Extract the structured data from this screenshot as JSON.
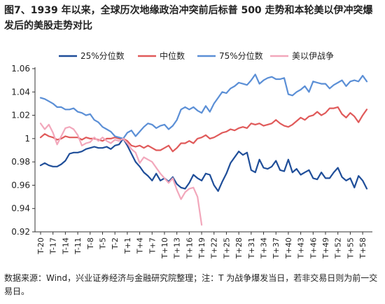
{
  "title": "图7、1939 年以来，全球历次地缘政治冲突前后标普 500 走势和本轮美以伊冲突爆发后的美股走势对比",
  "source": "数据来源：Wind，兴业证券经济与金融研究院整理；注：T 为战争爆发当日，若非交易日则为前一交易日。",
  "chart_data": {
    "type": "line",
    "title": "",
    "xlabel": "",
    "ylabel": "",
    "ylim": [
      0.92,
      1.06
    ],
    "yticks": [
      "0.92",
      "0.94",
      "0.96",
      "0.98",
      "1",
      "1.02",
      "1.04",
      "1.06"
    ],
    "grid": false,
    "legend_position": "top",
    "x": [
      "T-20",
      "T-19",
      "T-18",
      "T-17",
      "T-16",
      "T-15",
      "T-14",
      "T-13",
      "T-12",
      "T-11",
      "T-10",
      "T-9",
      "T-8",
      "T-7",
      "T-6",
      "T-5",
      "T-4",
      "T-3",
      "T-2",
      "T-1",
      "T",
      "T+1",
      "T+2",
      "T+3",
      "T+4",
      "T+5",
      "T+6",
      "T+7",
      "T+8",
      "T+9",
      "T+10",
      "T+11",
      "T+12",
      "T+13",
      "T+14",
      "T+15",
      "T+16",
      "T+17",
      "T+18",
      "T+19",
      "T+20",
      "T+21",
      "T+22",
      "T+23",
      "T+24",
      "T+25",
      "T+26",
      "T+27",
      "T+28",
      "T+29",
      "T+30",
      "T+31",
      "T+32",
      "T+33",
      "T+34",
      "T+35",
      "T+36",
      "T+37",
      "T+38",
      "T+39",
      "T+40",
      "T+41",
      "T+42",
      "T+43",
      "T+44",
      "T+45",
      "T+46",
      "T+47",
      "T+48",
      "T+49",
      "T+50",
      "T+51",
      "T+52",
      "T+53",
      "T+54",
      "T+55",
      "T+56",
      "T+57",
      "T+58",
      "T+59"
    ],
    "xtick_labels": [
      "T-20",
      "T-17",
      "T-14",
      "T-11",
      "T-8",
      "T-5",
      "T-2",
      "T+1",
      "T+4",
      "T+7",
      "T+10",
      "T+13",
      "T+16",
      "T+19",
      "T+22",
      "T+25",
      "T+28",
      "T+31",
      "T+34",
      "T+37",
      "T+40",
      "T+43",
      "T+46",
      "T+49",
      "T+52",
      "T+55",
      "T+58"
    ],
    "series": [
      {
        "name": "25%分位数",
        "color": "#1f4e99",
        "values": [
          0.977,
          0.979,
          0.977,
          0.976,
          0.976,
          0.978,
          0.981,
          0.987,
          0.988,
          0.988,
          0.989,
          0.991,
          0.992,
          0.993,
          0.992,
          0.992,
          0.993,
          0.991,
          0.994,
          0.995,
          1.0,
          0.994,
          0.987,
          0.98,
          0.976,
          0.971,
          0.968,
          0.964,
          0.97,
          0.964,
          0.966,
          0.963,
          0.967,
          0.961,
          0.958,
          0.957,
          0.962,
          0.969,
          0.966,
          0.964,
          0.97,
          0.969,
          0.96,
          0.955,
          0.963,
          0.97,
          0.979,
          0.984,
          0.989,
          0.986,
          0.988,
          0.973,
          0.971,
          0.982,
          0.975,
          0.974,
          0.976,
          0.981,
          0.973,
          0.972,
          0.982,
          0.971,
          0.974,
          0.969,
          0.971,
          0.973,
          0.966,
          0.965,
          0.971,
          0.966,
          0.966,
          0.971,
          0.975,
          0.967,
          0.964,
          0.966,
          0.958,
          0.968,
          0.964,
          0.957
        ]
      },
      {
        "name": "中位数",
        "color": "#e05a5a",
        "values": [
          1.001,
          1.004,
          1.002,
          1.001,
          0.999,
          1.0,
          1.002,
          1.001,
          1.001,
          1.001,
          0.999,
          1.001,
          1.0,
          1.0,
          0.999,
          0.998,
          1.0,
          1.0,
          1.001,
          1.0,
          1.0,
          0.998,
          0.994,
          0.993,
          0.994,
          0.992,
          0.994,
          0.992,
          0.99,
          0.99,
          0.992,
          0.994,
          0.989,
          0.992,
          0.996,
          0.996,
          0.998,
          0.996,
          1.0,
          1.001,
          1.003,
          1.0,
          1.001,
          1.003,
          1.005,
          1.006,
          1.008,
          1.007,
          1.009,
          1.01,
          1.009,
          1.013,
          1.012,
          1.013,
          1.011,
          1.012,
          1.013,
          1.016,
          1.013,
          1.011,
          1.01,
          1.012,
          1.015,
          1.018,
          1.016,
          1.019,
          1.02,
          1.023,
          1.02,
          1.022,
          1.026,
          1.026,
          1.027,
          1.021,
          1.018,
          1.022,
          1.019,
          1.014,
          1.02,
          1.025
        ]
      },
      {
        "name": "75%分位数",
        "color": "#5b8fd6",
        "values": [
          1.035,
          1.034,
          1.032,
          1.03,
          1.027,
          1.027,
          1.025,
          1.025,
          1.026,
          1.023,
          1.022,
          1.02,
          1.021,
          1.016,
          1.014,
          1.01,
          1.008,
          1.006,
          1.002,
          1.001,
          1.0,
          1.005,
          1.007,
          1.002,
          1.006,
          1.01,
          1.013,
          1.012,
          1.009,
          1.011,
          1.012,
          1.008,
          1.011,
          1.016,
          1.025,
          1.027,
          1.025,
          1.027,
          1.024,
          1.022,
          1.028,
          1.023,
          1.03,
          1.035,
          1.04,
          1.039,
          1.043,
          1.045,
          1.048,
          1.047,
          1.046,
          1.05,
          1.055,
          1.047,
          1.05,
          1.052,
          1.053,
          1.051,
          1.051,
          1.052,
          1.038,
          1.037,
          1.04,
          1.042,
          1.045,
          1.04,
          1.049,
          1.048,
          1.047,
          1.047,
          1.043,
          1.046,
          1.048,
          1.05,
          1.045,
          1.049,
          1.05,
          1.049,
          1.054,
          1.049
        ]
      },
      {
        "name": "美以伊战争",
        "color": "#f2a7bb",
        "values": [
          1.013,
          1.008,
          1.012,
          1.005,
          0.995,
          1.002,
          1.009,
          1.01,
          1.008,
          1.003,
          0.994,
          0.996,
          0.997,
          1.001,
          0.998,
          1.001,
          0.998,
          0.996,
          0.999,
          0.998,
          1.0,
          0.996,
          0.991,
          0.988,
          0.979,
          0.984,
          0.982,
          0.98,
          0.975,
          0.97,
          0.966,
          0.962,
          0.966,
          0.956,
          0.948,
          0.954,
          0.957,
          0.958,
          0.95,
          0.926,
          null,
          null,
          null,
          null,
          null,
          null,
          null,
          null,
          null,
          null,
          null,
          null,
          null,
          null,
          null,
          null,
          null,
          null,
          null,
          null,
          null,
          null,
          null,
          null,
          null,
          null,
          null,
          null,
          null,
          null,
          null,
          null,
          null,
          null,
          null,
          null,
          null,
          null,
          null,
          null
        ]
      }
    ]
  }
}
